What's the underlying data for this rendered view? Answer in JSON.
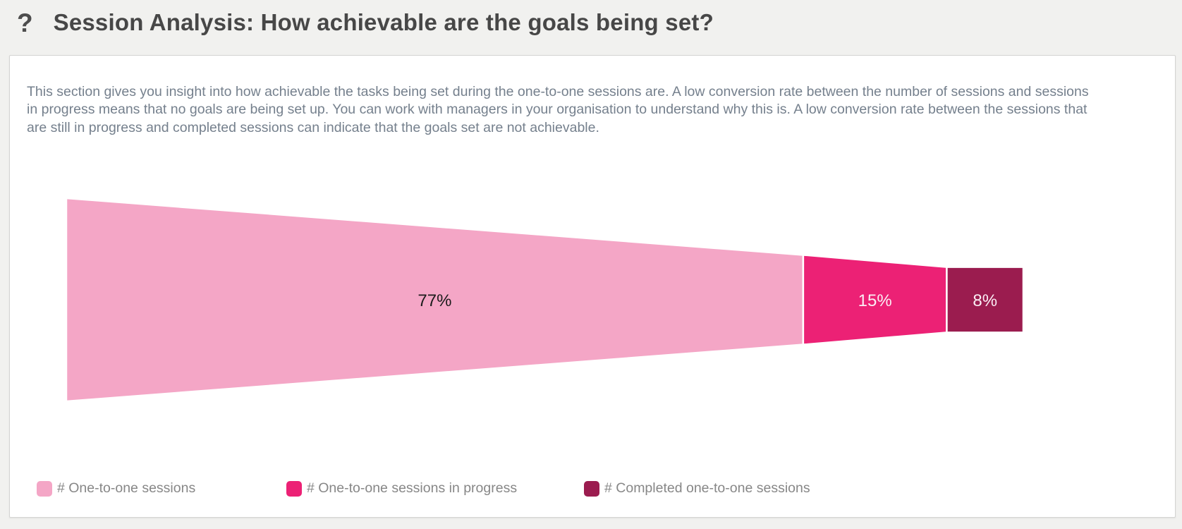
{
  "page": {
    "background_color": "#F1F1EF",
    "header": {
      "help_icon": "?",
      "title": "Session Analysis: How achievable are the goals being set?"
    }
  },
  "panel": {
    "description": "This section gives you insight into how achievable the tasks being set during the one-to-one sessions are. A low conversion rate between the number of sessions and sessions in progress means that no goals are being set up. You can work with managers in your organisation to understand why this is. A low conversion rate between the sessions that are still in progress and completed sessions can indicate that the goals set are not achievable."
  },
  "chart_data": {
    "type": "funnel",
    "orientation": "horizontal",
    "title": "",
    "legend_position": "bottom",
    "slice_divider_color": "#FFFFFF",
    "slices": [
      {
        "name": "# One-to-one sessions",
        "value": 77,
        "label": "77%",
        "color": "#F4A6C6",
        "label_color": "#1B1B1B"
      },
      {
        "name": "# One-to-one sessions in progress",
        "value": 15,
        "label": "15%",
        "color": "#EC2175",
        "label_color": "#FBEDF4"
      },
      {
        "name": "# Completed one-to-one sessions",
        "value": 8,
        "label": "8%",
        "color": "#9B1C4F",
        "label_color": "#FBEDF4"
      }
    ]
  },
  "legend": {
    "items": [
      {
        "label": "# One-to-one sessions"
      },
      {
        "label": "# One-to-one sessions in progress"
      },
      {
        "label": "# Completed one-to-one sessions"
      }
    ]
  }
}
